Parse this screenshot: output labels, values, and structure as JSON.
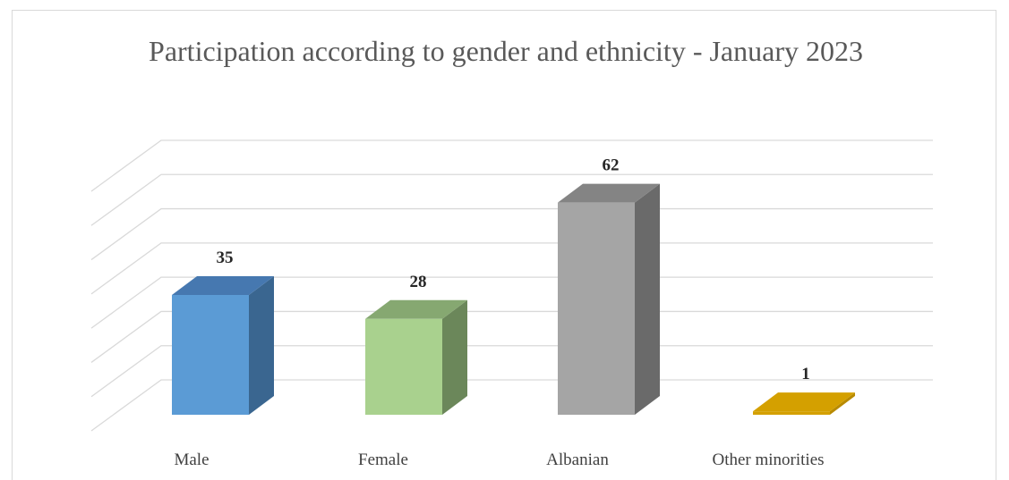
{
  "chart_data": {
    "type": "bar",
    "style": "3d-column",
    "title": "Participation according to gender and ethnicity - January 2023",
    "categories": [
      "Male",
      "Female",
      "Albanian",
      "Other minorities"
    ],
    "values": [
      35,
      28,
      62,
      1
    ],
    "data_labels": [
      "35",
      "28",
      "62",
      "1"
    ],
    "ylim": [
      0,
      70
    ],
    "grid": true,
    "legend": "none",
    "bar_colors": [
      {
        "front": "#5b9bd5",
        "top": "#4678b0",
        "side": "#3a6690"
      },
      {
        "front": "#a9d18e",
        "top": "#86a871",
        "side": "#6b875a"
      },
      {
        "front": "#a5a5a5",
        "top": "#848484",
        "side": "#6a6a6a"
      },
      {
        "front": "#d4a000",
        "top": "#d4a000",
        "side": "#b88a00"
      }
    ],
    "grid_color": "#d9d9d9"
  }
}
